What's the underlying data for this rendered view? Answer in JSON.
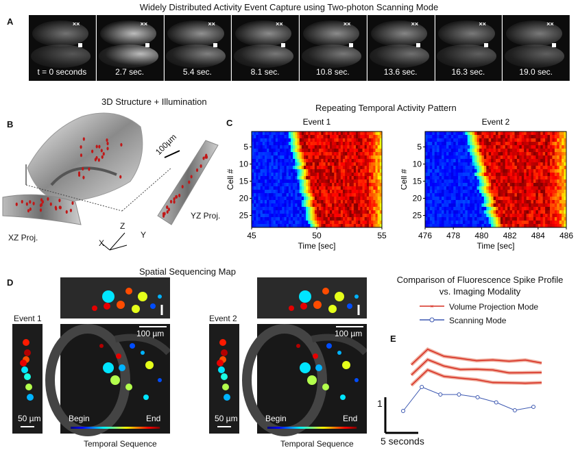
{
  "figure": {
    "panel_a": {
      "label": "A",
      "title": "Widely Distributed Activity Event Capture using Two-photon Scanning Mode",
      "frames": [
        "t = 0 seconds",
        "2.7 sec.",
        "5.4 sec.",
        "8.1 sec.",
        "10.8 sec.",
        "13.6 sec.",
        "16.3 sec.",
        "19.0 sec."
      ],
      "frame_intensity": [
        0.15,
        0.75,
        0.4,
        0.35,
        0.35,
        0.3,
        0.2,
        0.2
      ]
    },
    "panel_b": {
      "label": "B",
      "title": "3D Structure + Illumination",
      "scale_label": "100µm",
      "xz_label": "XZ Proj.",
      "yz_label": "YZ Proj.",
      "axis_z": "Z",
      "axis_x": "X",
      "axis_y": "Y"
    },
    "panel_c": {
      "label": "C",
      "title": "Repeating Temporal Activity Pattern"
    },
    "panel_d": {
      "label": "D",
      "title": "Spatial Sequencing Map",
      "event1": "Event 1",
      "event2": "Event 2",
      "scale_100": "100 µm",
      "scale_50": "50 µm",
      "begin": "Begin",
      "end": "End",
      "seq_label": "Temporal Sequence"
    },
    "panel_e": {
      "label": "E",
      "title_line1": "Comparison of Fluorescence Spike Profile",
      "title_line2": "vs. Imaging Modality",
      "legend_volume": "Volume Projection Mode",
      "legend_scanning": "Scanning Mode",
      "y_scale": "1",
      "x_scale": "5 seconds"
    },
    "colors": {
      "red": "#d62b1f",
      "blue": "#3a56b0",
      "heat_low": "#1a2a9a",
      "heat_high": "#c81010"
    }
  },
  "chart_data": [
    {
      "type": "heatmap",
      "title": "Event 1",
      "xlabel": "Time [sec]",
      "ylabel": "Cell #",
      "xlim": [
        45,
        55
      ],
      "ylim": [
        1,
        28
      ],
      "x_ticks": [
        45,
        50,
        55
      ],
      "y_ticks": [
        5,
        10,
        15,
        20,
        25
      ],
      "onset_start": 48.2,
      "onset_end": 49.8
    },
    {
      "type": "heatmap",
      "title": "Event 2",
      "xlabel": "Time [sec]",
      "ylabel": "Cell #",
      "xlim": [
        476,
        486
      ],
      "ylim": [
        1,
        28
      ],
      "x_ticks": [
        476,
        478,
        480,
        482,
        484,
        486
      ],
      "y_ticks": [
        5,
        10,
        15,
        20,
        25
      ],
      "onset_start": 479.2,
      "onset_end": 481.0
    },
    {
      "type": "line",
      "title": "Comparison of Fluorescence Spike Profile vs. Imaging Modality",
      "series": [
        {
          "name": "Volume Projection Mode",
          "x": [
            0,
            1,
            2,
            3,
            4,
            5,
            6,
            7,
            8
          ],
          "values": [
            0.55,
            1.0,
            0.78,
            0.72,
            0.68,
            0.66,
            0.64,
            0.65,
            0.63
          ]
        },
        {
          "name": "Scanning Mode",
          "x": [
            0,
            1,
            2,
            3,
            4,
            5,
            6,
            7
          ],
          "values": [
            0.3,
            1.0,
            0.78,
            0.78,
            0.7,
            0.55,
            0.32,
            0.42
          ]
        }
      ]
    }
  ]
}
